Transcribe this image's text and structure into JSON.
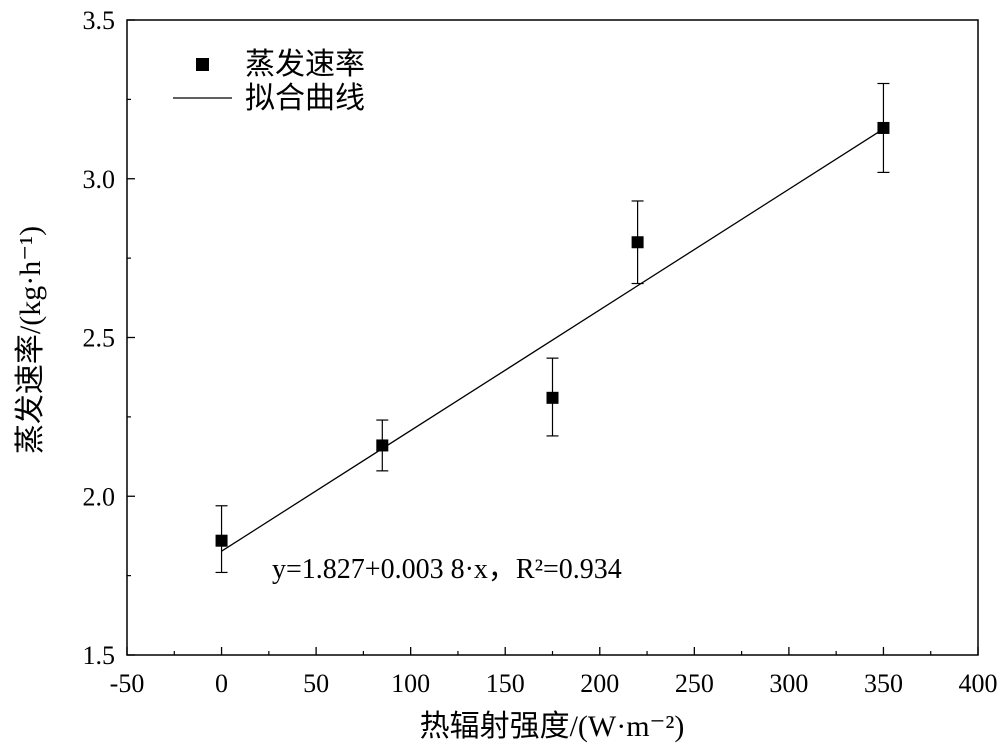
{
  "chart_data": {
    "type": "scatter",
    "title": "",
    "xlabel": "热辐射强度/(W·m⁻²)",
    "ylabel": "蒸发速率/(kg·h⁻¹)",
    "xlim": [
      -50,
      400
    ],
    "ylim": [
      1.5,
      3.5
    ],
    "x_ticks": [
      -50,
      0,
      50,
      100,
      150,
      200,
      250,
      300,
      350,
      400
    ],
    "y_ticks": [
      1.5,
      2.0,
      2.5,
      3.0,
      3.5
    ],
    "x_tick_labels": [
      "-50",
      "0",
      "50",
      "100",
      "150",
      "200",
      "250",
      "300",
      "350",
      "400"
    ],
    "y_tick_labels": [
      "1.5",
      "2.0",
      "2.5",
      "3.0",
      "3.5"
    ],
    "grid": false,
    "legend_position": "top-left",
    "series": [
      {
        "name": "蒸发速率",
        "marker": "square",
        "color": "#000000",
        "x": [
          0,
          85,
          175,
          220,
          350
        ],
        "y": [
          1.86,
          2.16,
          2.31,
          2.8,
          3.16
        ],
        "error_low": [
          1.76,
          2.08,
          2.19,
          2.67,
          3.02
        ],
        "error_high": [
          1.97,
          2.24,
          2.435,
          2.93,
          3.3
        ]
      },
      {
        "name": "拟合曲线",
        "style": "line",
        "color": "#000000",
        "x": [
          0,
          350
        ],
        "y": [
          1.827,
          3.157
        ]
      }
    ],
    "annotation": "y=1.827+0.003 8·x，R²=0.934"
  }
}
